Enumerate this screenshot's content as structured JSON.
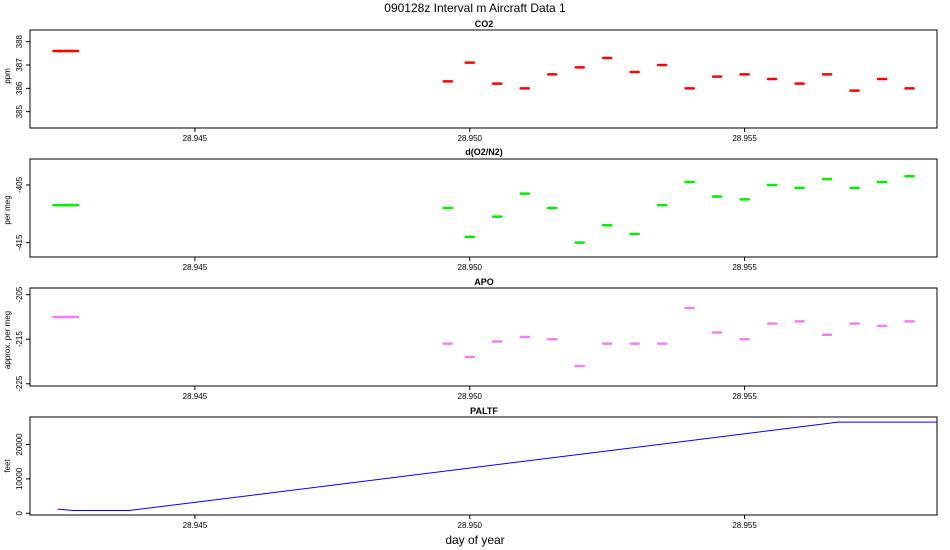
{
  "figure": {
    "title": "090128z   Interval m Aircraft Data 1",
    "xlabel": "day of year"
  },
  "colors": {
    "co2": "#ff0000",
    "o2n2": "#00ee00",
    "apo": "#ee82ee",
    "paltf": "#0000ff",
    "axis": "#000000"
  },
  "chart_data": [
    {
      "type": "scatter",
      "title": "CO2",
      "ylabel": "ppm",
      "xlim": [
        28.942,
        28.9585
      ],
      "ylim": [
        384.3,
        388.5
      ],
      "xticks": [
        "28.945",
        "28.950",
        "28.955"
      ],
      "yticks": [
        "385",
        "386",
        "387",
        "388"
      ],
      "series": [
        {
          "x": [
            28.9425,
            28.9426,
            28.9427,
            28.9428,
            28.9496,
            28.95,
            28.9505,
            28.951,
            28.9515,
            28.952,
            28.9525,
            28.953,
            28.9535,
            28.954,
            28.9545,
            28.955,
            28.9555,
            28.956,
            28.9565,
            28.957,
            28.9575,
            28.958
          ],
          "y": [
            387.6,
            387.6,
            387.6,
            387.6,
            386.3,
            387.1,
            386.2,
            386.0,
            386.6,
            386.9,
            387.3,
            386.7,
            387.0,
            386.0,
            386.5,
            386.6,
            386.4,
            386.2,
            386.6,
            385.9,
            386.4,
            386.0
          ]
        }
      ]
    },
    {
      "type": "scatter",
      "title": "d(O2/N2)",
      "ylabel": "per meg",
      "xlim": [
        28.942,
        28.9585
      ],
      "ylim": [
        -417.5,
        -400.5
      ],
      "xticks": [
        "28.945",
        "28.950",
        "28.955"
      ],
      "yticks": [
        "-415",
        "-405"
      ],
      "series": [
        {
          "x": [
            28.9425,
            28.9426,
            28.9427,
            28.9428,
            28.9496,
            28.95,
            28.9505,
            28.951,
            28.9515,
            28.952,
            28.9525,
            28.953,
            28.9535,
            28.954,
            28.9545,
            28.955,
            28.9555,
            28.956,
            28.9565,
            28.957,
            28.9575,
            28.958
          ],
          "y": [
            -408.5,
            -408.5,
            -408.5,
            -408.5,
            -409.0,
            -414.0,
            -410.5,
            -406.5,
            -409.0,
            -415.0,
            -412.0,
            -413.5,
            -408.5,
            -404.5,
            -407.0,
            -407.5,
            -405.0,
            -405.5,
            -404.0,
            -405.5,
            -404.5,
            -403.5
          ]
        }
      ]
    },
    {
      "type": "scatter",
      "title": "APO",
      "ylabel": "approx. per meg",
      "xlim": [
        28.942,
        28.9585
      ],
      "ylim": [
        -225.5,
        -203.5
      ],
      "xticks": [
        "28.945",
        "28.950",
        "28.955"
      ],
      "yticks": [
        "-225",
        "-215",
        "-205"
      ],
      "series": [
        {
          "x": [
            28.9425,
            28.9426,
            28.9427,
            28.9428,
            28.9496,
            28.95,
            28.9505,
            28.951,
            28.9515,
            28.952,
            28.9525,
            28.953,
            28.9535,
            28.954,
            28.9545,
            28.955,
            28.9555,
            28.956,
            28.9565,
            28.957,
            28.9575,
            28.958
          ],
          "y": [
            -210.0,
            -210.0,
            -210.0,
            -210.0,
            -216.0,
            -219.0,
            -215.5,
            -214.5,
            -215.0,
            -221.0,
            -216.0,
            -216.0,
            -216.0,
            -208.0,
            -213.5,
            -215.0,
            -211.5,
            -211.0,
            -214.0,
            -211.5,
            -212.0,
            -211.0
          ]
        }
      ]
    },
    {
      "type": "line",
      "title": "PALTF",
      "ylabel": "feet",
      "xlim": [
        28.942,
        28.9585
      ],
      "ylim": [
        -500,
        28000
      ],
      "xticks": [
        "28.945",
        "28.950",
        "28.955"
      ],
      "yticks": [
        "0",
        "10000",
        "20000"
      ],
      "series": [
        {
          "x": [
            28.9425,
            28.9428,
            28.9438,
            28.9567,
            28.9585
          ],
          "y": [
            1200,
            800,
            800,
            26500,
            26500
          ]
        }
      ]
    }
  ]
}
